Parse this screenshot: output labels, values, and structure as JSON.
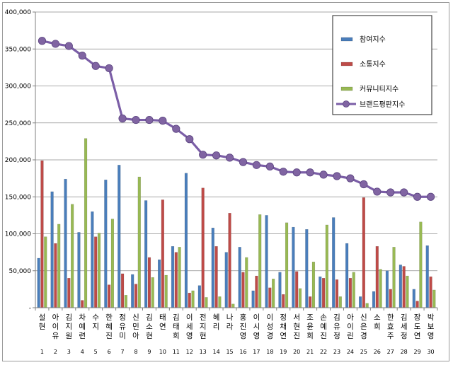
{
  "chart_data": {
    "type": "bar",
    "title": "",
    "xlabel": "",
    "ylabel": "",
    "ylim": [
      0,
      400000
    ],
    "yticks": [
      0,
      50000,
      100000,
      150000,
      200000,
      250000,
      300000,
      350000,
      400000
    ],
    "ytick_labels": [
      "-",
      "50,000",
      "100,000",
      "150,000",
      "200,000",
      "250,000",
      "300,000",
      "350,000",
      "400,000"
    ],
    "grid": "horizontal",
    "legend_position": "top-right",
    "categories": [
      "설현",
      "아이유",
      "김지원",
      "차예련",
      "수지",
      "한혜진",
      "정유미",
      "신민아",
      "김소현",
      "태연",
      "김태희",
      "이세영",
      "전지현",
      "혜리",
      "나라",
      "홍진영",
      "이시영",
      "이성경",
      "정채연",
      "서현진",
      "조윤희",
      "손예진",
      "김유정",
      "아이린",
      "신은경",
      "소희",
      "한효주",
      "김세정",
      "장도연",
      "박보영"
    ],
    "indices": [
      "1",
      "2",
      "3",
      "4",
      "5",
      "6",
      "7",
      "8",
      "9",
      "10",
      "11",
      "12",
      "13",
      "14",
      "15",
      "16",
      "17",
      "18",
      "19",
      "20",
      "21",
      "22",
      "23",
      "24",
      "25",
      "26",
      "27",
      "28",
      "29",
      "30"
    ],
    "series": [
      {
        "name": "참여지수",
        "type": "bar",
        "color": "#4a7ebb",
        "values": [
          67000,
          157000,
          174000,
          102000,
          130000,
          173000,
          193000,
          45000,
          145000,
          65000,
          83000,
          182000,
          30000,
          108000,
          75000,
          82000,
          23000,
          125000,
          48000,
          109000,
          106000,
          42000,
          122000,
          87000,
          15000,
          22000,
          50000,
          58000,
          25000,
          84000
        ]
      },
      {
        "name": "소통지수",
        "type": "bar",
        "color": "#be4b48",
        "values": [
          199000,
          87000,
          40000,
          10000,
          96000,
          31000,
          46000,
          32000,
          68000,
          146000,
          75000,
          20000,
          162000,
          83000,
          128000,
          48000,
          43000,
          27000,
          18000,
          49000,
          15000,
          40000,
          38000,
          40000,
          149000,
          83000,
          25000,
          56000,
          9000,
          42000
        ]
      },
      {
        "name": "커뮤니티지수",
        "type": "bar",
        "color": "#98b954",
        "values": [
          96000,
          113000,
          140000,
          229000,
          101000,
          120000,
          17000,
          177000,
          41000,
          44000,
          82000,
          23000,
          14000,
          15000,
          5000,
          68000,
          126000,
          39000,
          115000,
          26000,
          62000,
          112000,
          15000,
          48000,
          6000,
          52000,
          82000,
          43000,
          116000,
          24000
        ]
      },
      {
        "name": "브랜드평판지수",
        "type": "line",
        "color": "#7b5ea7",
        "values": [
          361000,
          357000,
          354000,
          341000,
          327000,
          324000,
          256000,
          254000,
          254000,
          253000,
          242000,
          228000,
          207000,
          206000,
          203000,
          197000,
          193000,
          191000,
          184000,
          183000,
          183000,
          180000,
          178000,
          175000,
          167000,
          157000,
          156000,
          156000,
          150000,
          150000
        ]
      }
    ]
  }
}
